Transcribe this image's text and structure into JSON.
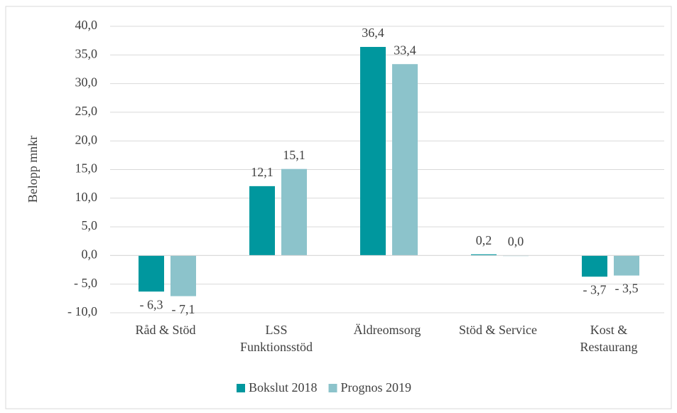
{
  "chart_data": {
    "type": "bar",
    "y_label": "Belopp mnkr",
    "categories": [
      "Råd & Stöd",
      "LSS Funktionsstöd",
      "Äldreomsorg",
      "Stöd & Service",
      "Kost & Restaurang"
    ],
    "series": [
      {
        "name": "Bokslut 2018",
        "color": "#00979e",
        "values": [
          -6.3,
          12.1,
          36.4,
          0.2,
          -3.7
        ],
        "value_labels": [
          "- 6,3",
          "12,1",
          "36,4",
          "0,2",
          "- 3,7"
        ]
      },
      {
        "name": "Prognos 2019",
        "color": "#8cc3cb",
        "values": [
          -7.1,
          15.1,
          33.4,
          0.0,
          -3.5
        ],
        "value_labels": [
          "- 7,1",
          "15,1",
          "33,4",
          "0,0",
          "- 3,5"
        ]
      }
    ],
    "ylim": [
      -10,
      40
    ],
    "yticks": [
      {
        "value": -10,
        "label": "- 10,0"
      },
      {
        "value": -5,
        "label": "- 5,0"
      },
      {
        "value": 0,
        "label": "0,0"
      },
      {
        "value": 5,
        "label": "5,0"
      },
      {
        "value": 10,
        "label": "10,0"
      },
      {
        "value": 15,
        "label": "15,0"
      },
      {
        "value": 20,
        "label": "20,0"
      },
      {
        "value": 25,
        "label": "25,0"
      },
      {
        "value": 30,
        "label": "30,0"
      },
      {
        "value": 35,
        "label": "35,0"
      },
      {
        "value": 40,
        "label": "40,0"
      }
    ],
    "grid": true,
    "legend": "bottom"
  }
}
